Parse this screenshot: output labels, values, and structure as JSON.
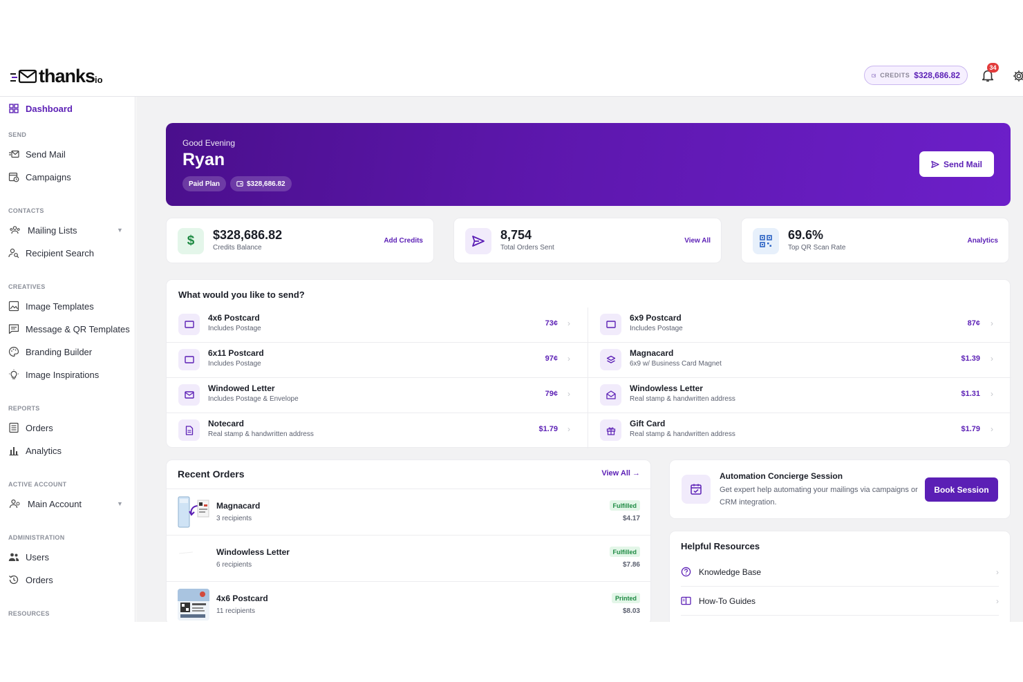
{
  "header": {
    "logo_text": "thanks",
    "logo_suffix": "io",
    "credits_label": "CREDITS",
    "credits_value": "$328,686.82",
    "notification_count": "34"
  },
  "sidebar": {
    "dashboard": "Dashboard",
    "sections": {
      "send": "SEND",
      "contacts": "CONTACTS",
      "creatives": "CREATIVES",
      "reports": "REPORTS",
      "active_account": "ACTIVE ACCOUNT",
      "administration": "ADMINISTRATION",
      "resources": "RESOURCES"
    },
    "items": {
      "send_mail": "Send Mail",
      "campaigns": "Campaigns",
      "mailing_lists": "Mailing Lists",
      "recipient_search": "Recipient Search",
      "image_templates": "Image Templates",
      "message_qr_templates": "Message & QR Templates",
      "branding_builder": "Branding Builder",
      "image_inspirations": "Image Inspirations",
      "orders": "Orders",
      "analytics": "Analytics",
      "main_account": "Main Account",
      "users": "Users",
      "admin_orders": "Orders"
    }
  },
  "hero": {
    "greeting": "Good Evening",
    "name": "Ryan",
    "plan": "Paid Plan",
    "balance": "$328,686.82",
    "send_button": "Send Mail"
  },
  "stats": [
    {
      "value": "$328,686.82",
      "label": "Credits Balance",
      "action": "Add Credits"
    },
    {
      "value": "8,754",
      "label": "Total Orders Sent",
      "action": "View All"
    },
    {
      "value": "69.6%",
      "label": "Top QR Scan Rate",
      "action": "Analytics"
    }
  ],
  "send_panel": {
    "title": "What would you like to send?",
    "products": [
      {
        "name": "4x6 Postcard",
        "desc": "Includes Postage",
        "price": "73¢"
      },
      {
        "name": "6x9 Postcard",
        "desc": "Includes Postage",
        "price": "87¢"
      },
      {
        "name": "6x11 Postcard",
        "desc": "Includes Postage",
        "price": "97¢"
      },
      {
        "name": "Magnacard",
        "desc": "6x9 w/ Business Card Magnet",
        "price": "$1.39"
      },
      {
        "name": "Windowed Letter",
        "desc": "Includes Postage & Envelope",
        "price": "79¢"
      },
      {
        "name": "Windowless Letter",
        "desc": "Real stamp & handwritten address",
        "price": "$1.31"
      },
      {
        "name": "Notecard",
        "desc": "Real stamp & handwritten address",
        "price": "$1.79"
      },
      {
        "name": "Gift Card",
        "desc": "Real stamp & handwritten address",
        "price": "$1.79"
      }
    ]
  },
  "recent_orders": {
    "title": "Recent Orders",
    "view_all": "View All →",
    "orders": [
      {
        "name": "Magnacard",
        "recipients": "3 recipients",
        "status": "Fulfilled",
        "amount": "$4.17"
      },
      {
        "name": "Windowless Letter",
        "recipients": "6 recipients",
        "status": "Fulfilled",
        "amount": "$7.86"
      },
      {
        "name": "4x6 Postcard",
        "recipients": "11 recipients",
        "status": "Printed",
        "amount": "$8.03"
      }
    ]
  },
  "concierge": {
    "title": "Automation Concierge Session",
    "desc": "Get expert help automating your mailings via campaigns or CRM integration.",
    "button": "Book Session"
  },
  "resources": {
    "title": "Helpful Resources",
    "items": [
      "Knowledge Base",
      "How-To Guides"
    ]
  },
  "colors": {
    "brand": "#5b1fb5",
    "hero_start": "#4a0f8c",
    "hero_end": "#6c1fc9",
    "fulfilled_bg": "#e3f6e8",
    "fulfilled_text": "#1e8a43",
    "badge": "#e23b3b"
  }
}
